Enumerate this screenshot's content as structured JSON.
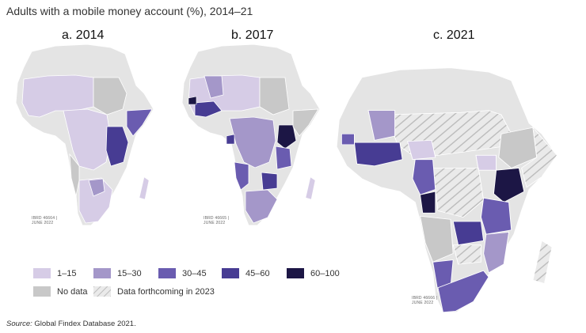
{
  "title": "Adults with a mobile money account (%), 2014–21",
  "panels": [
    {
      "label": "a. 2014",
      "ibrd_line1": "IBRD 46664 |",
      "ibrd_line2": "JUNE 2022"
    },
    {
      "label": "b. 2017",
      "ibrd_line1": "IBRD 46665 |",
      "ibrd_line2": "JUNE 2022"
    },
    {
      "label": "c. 2021",
      "ibrd_line1": "IBRD 46666 |",
      "ibrd_line2": "JUNE 2022"
    }
  ],
  "legend": [
    {
      "label": "1–15",
      "color": "#d6cce6"
    },
    {
      "label": "15–30",
      "color": "#a497c9"
    },
    {
      "label": "30–45",
      "color": "#6a5cb0"
    },
    {
      "label": "45–60",
      "color": "#473c93"
    },
    {
      "label": "60–100",
      "color": "#1c1645"
    },
    {
      "label": "No data",
      "color": "#c8c8c8"
    },
    {
      "label": "Data forthcoming in 2023",
      "color": "#e6e6e6"
    }
  ],
  "colors": {
    "base_land": "#e4e4e4",
    "water": "#ffffff",
    "hatch": "#bdbdbd"
  },
  "source_label": "Source:",
  "source_text": " Global Findex Database 2021."
}
